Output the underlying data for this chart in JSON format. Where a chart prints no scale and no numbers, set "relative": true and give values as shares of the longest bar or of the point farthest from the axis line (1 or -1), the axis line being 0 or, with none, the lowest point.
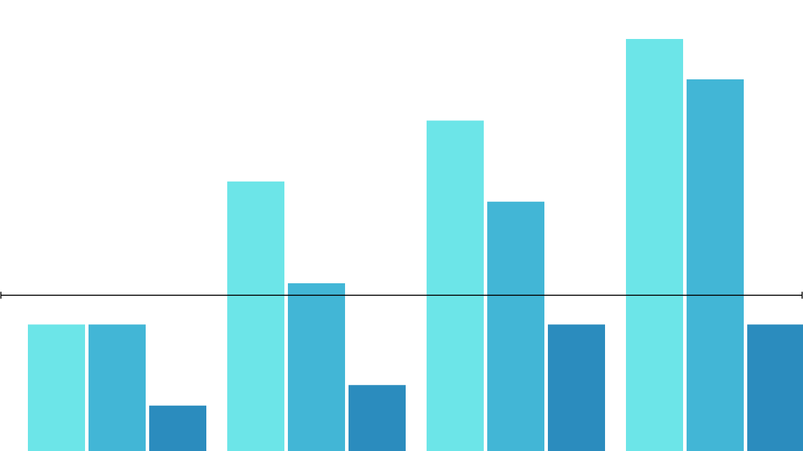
{
  "chart_data": {
    "type": "bar",
    "relative": true,
    "categories": [
      null,
      null,
      null,
      null
    ],
    "series": [
      {
        "color": "#6ce5e8",
        "values": [
          0.307,
          0.654,
          0.802,
          1
        ]
      },
      {
        "color": "#42b6d6",
        "values": [
          0.307,
          0.407,
          0.605,
          0.902
        ]
      },
      {
        "color": "#2b8cbe",
        "values": [
          0.11,
          0.16,
          0.307,
          0.307
        ]
      }
    ],
    "ref_lines": [
      {
        "axis": "y",
        "value": 0.378,
        "color": "#000000"
      }
    ]
  }
}
